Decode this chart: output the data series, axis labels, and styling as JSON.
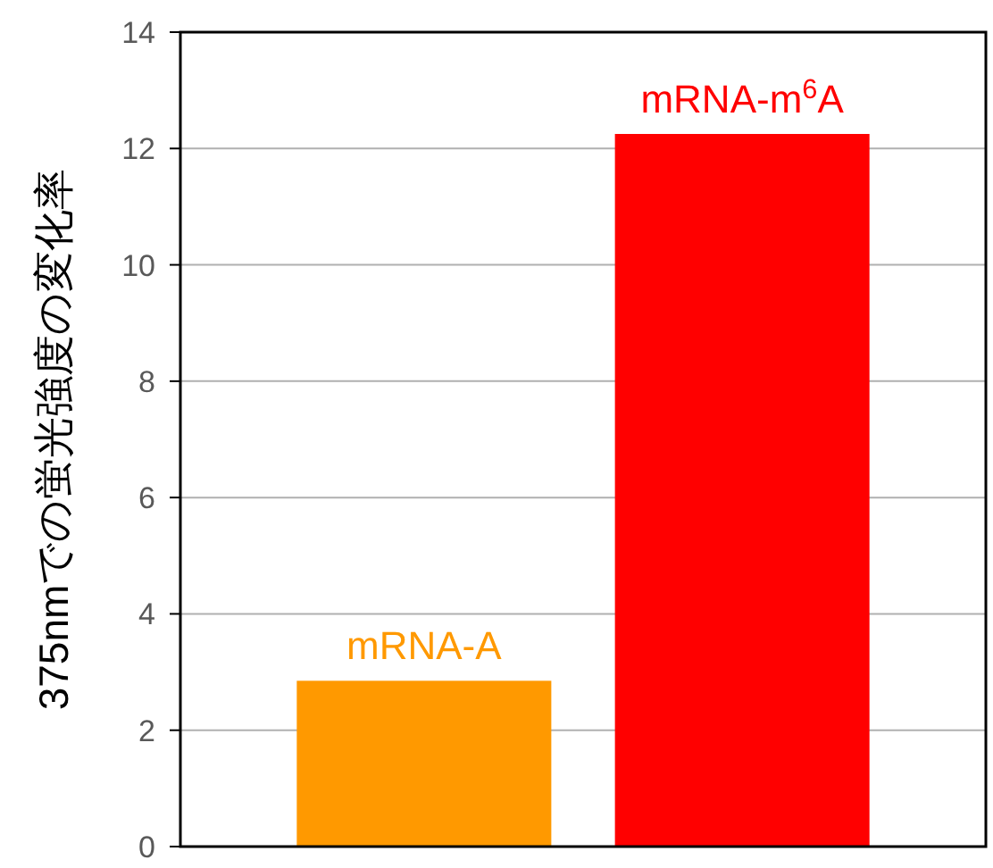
{
  "chart_data": {
    "type": "bar",
    "ylabel": "375nmでの蛍光強度の変化率",
    "categories": [
      "mRNA-A",
      "mRNA-m$^{6}$A"
    ],
    "values": [
      2.85,
      12.25
    ],
    "colors": [
      "#ff9900",
      "#ff0000"
    ],
    "ylim": [
      0,
      14
    ],
    "yticks": [
      0,
      2,
      4,
      6,
      8,
      10,
      12,
      14
    ],
    "grid": "y"
  }
}
